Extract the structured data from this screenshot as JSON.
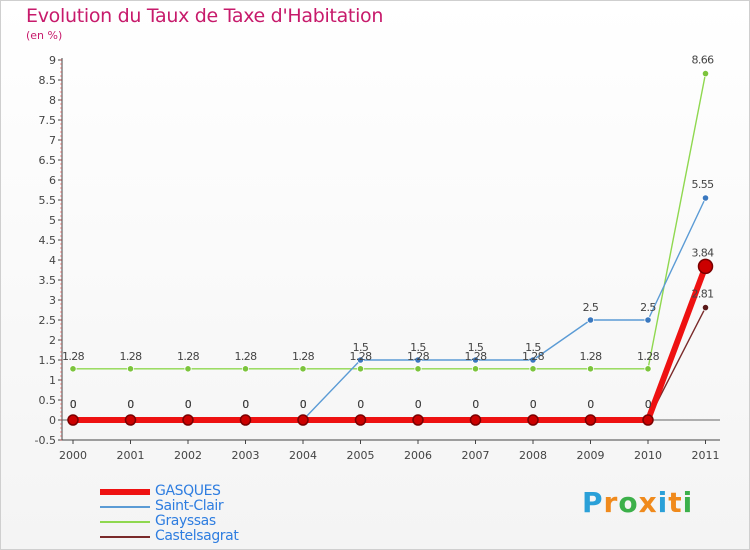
{
  "chart_data": {
    "type": "line",
    "title": "Evolution du Taux de Taxe d'Habitation",
    "subtitle": "(en %)",
    "x": [
      "2000",
      "2001",
      "2002",
      "2003",
      "2004",
      "2005",
      "2006",
      "2007",
      "2008",
      "2009",
      "2010",
      "2011"
    ],
    "ylim": [
      -0.5,
      9
    ],
    "yticks": [
      "-0.5",
      "0",
      "0.5",
      "1",
      "1.5",
      "2",
      "2.5",
      "3",
      "3.5",
      "4",
      "4.5",
      "5",
      "5.5",
      "6",
      "6.5",
      "7",
      "7.5",
      "8",
      "8.5",
      "9"
    ],
    "series": [
      {
        "name": "Grayssas",
        "color": "#8fd84f",
        "point": "#7cc43c",
        "values": [
          1.28,
          1.28,
          1.28,
          1.28,
          1.28,
          1.28,
          1.28,
          1.28,
          1.28,
          1.28,
          1.28,
          8.66
        ],
        "labels": [
          "1.28",
          "1.28",
          "1.28",
          "1.28",
          "1.28",
          "1.28",
          "1.28",
          "1.28",
          "1.28",
          "1.28",
          "1.28",
          "8.66"
        ]
      },
      {
        "name": "Saint-Clair",
        "color": "#5b9bd5",
        "point": "#3a78bf",
        "values": [
          0,
          0,
          0,
          0,
          0,
          1.5,
          1.5,
          1.5,
          1.5,
          2.5,
          2.5,
          5.55
        ],
        "labels": [
          "0",
          "0",
          "0",
          "0",
          "0",
          "1.5",
          "1.5",
          "1.5",
          "1.5",
          "2.5",
          "2.5",
          "5.55"
        ]
      },
      {
        "name": "Castelsagrat",
        "color": "#7a2a2a",
        "point": "#5a1a1a",
        "values": [
          0,
          0,
          0,
          0,
          0,
          0,
          0,
          0,
          0,
          0,
          0,
          2.81
        ],
        "labels": [
          "0",
          "0",
          "0",
          "0",
          "0",
          "0",
          "0",
          "0",
          "0",
          "0",
          "0",
          "2.81"
        ]
      },
      {
        "name": "GASQUES",
        "color": "#ee1111",
        "point": "#dd0000",
        "values": [
          0,
          0,
          0,
          0,
          0,
          0,
          0,
          0,
          0,
          0,
          0,
          3.84
        ],
        "labels": [
          "0",
          "0",
          "0",
          "0",
          "0",
          "0",
          "0",
          "0",
          "0",
          "0",
          "0",
          "3.84"
        ]
      }
    ],
    "legend": [
      "GASQUES",
      "Saint-Clair",
      "Grayssas",
      "Castelsagrat"
    ]
  },
  "logo": {
    "letters": [
      "P",
      "r",
      "o",
      "x",
      "i",
      "t",
      "i"
    ],
    "colors": [
      "#2aa0d8",
      "#f08a1c",
      "#3cb04a",
      "#f08a1c",
      "#2aa0d8",
      "#f08a1c",
      "#3cb04a"
    ]
  }
}
